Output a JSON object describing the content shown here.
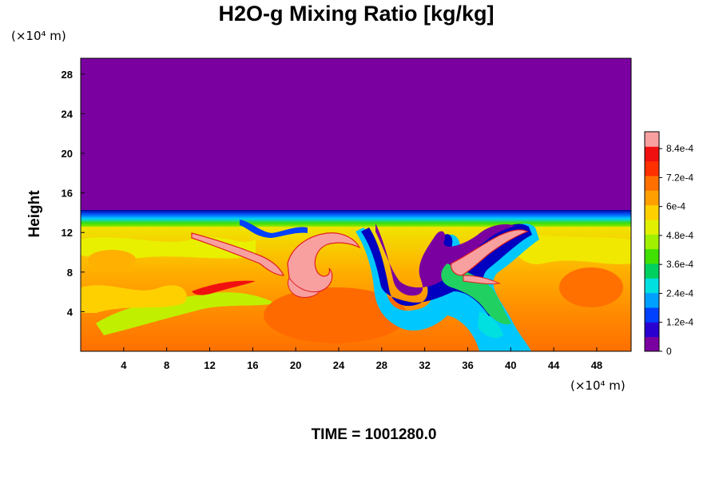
{
  "chart_data": {
    "type": "heatmap",
    "title": "H2O-g Mixing Ratio [kg/kg]",
    "ylabel": "Height",
    "xlabel": "",
    "x_unit_label": "(×10⁴ m)",
    "y_unit_label": "(×10⁴ m)",
    "x_ticks": [
      4,
      8,
      12,
      16,
      20,
      24,
      28,
      32,
      36,
      40,
      44,
      48
    ],
    "y_ticks": [
      4,
      8,
      12,
      16,
      20,
      24,
      28
    ],
    "xlim": [
      0,
      51.2
    ],
    "ylim": [
      0,
      29.6
    ],
    "colorbar": {
      "min": 0,
      "max": 0.00091,
      "tick_values": [
        0,
        0.00012,
        0.00024,
        0.00036,
        0.00048,
        0.0006,
        0.00072,
        0.00084
      ],
      "tick_labels": [
        "0",
        "1.2e-4",
        "2.4e-4",
        "3.6e-4",
        "4.8e-4",
        "6e-4",
        "7.2e-4",
        "8.4e-4"
      ],
      "colors": [
        "#7a00a0",
        "#2a00d0",
        "#0040ff",
        "#00a0ff",
        "#00e0e0",
        "#00d060",
        "#40e000",
        "#a0f000",
        "#e0f000",
        "#ffd000",
        "#ffa000",
        "#ff7000",
        "#ff3000",
        "#f01010",
        "#f8a0a0"
      ]
    },
    "time_label": "TIME = 1001280.0"
  },
  "colors": {
    "upper_layer": "#7a00a0",
    "mid_layer": "#f0e000",
    "lower_layer": "#ff8000",
    "peak": "#f8a0a0"
  }
}
